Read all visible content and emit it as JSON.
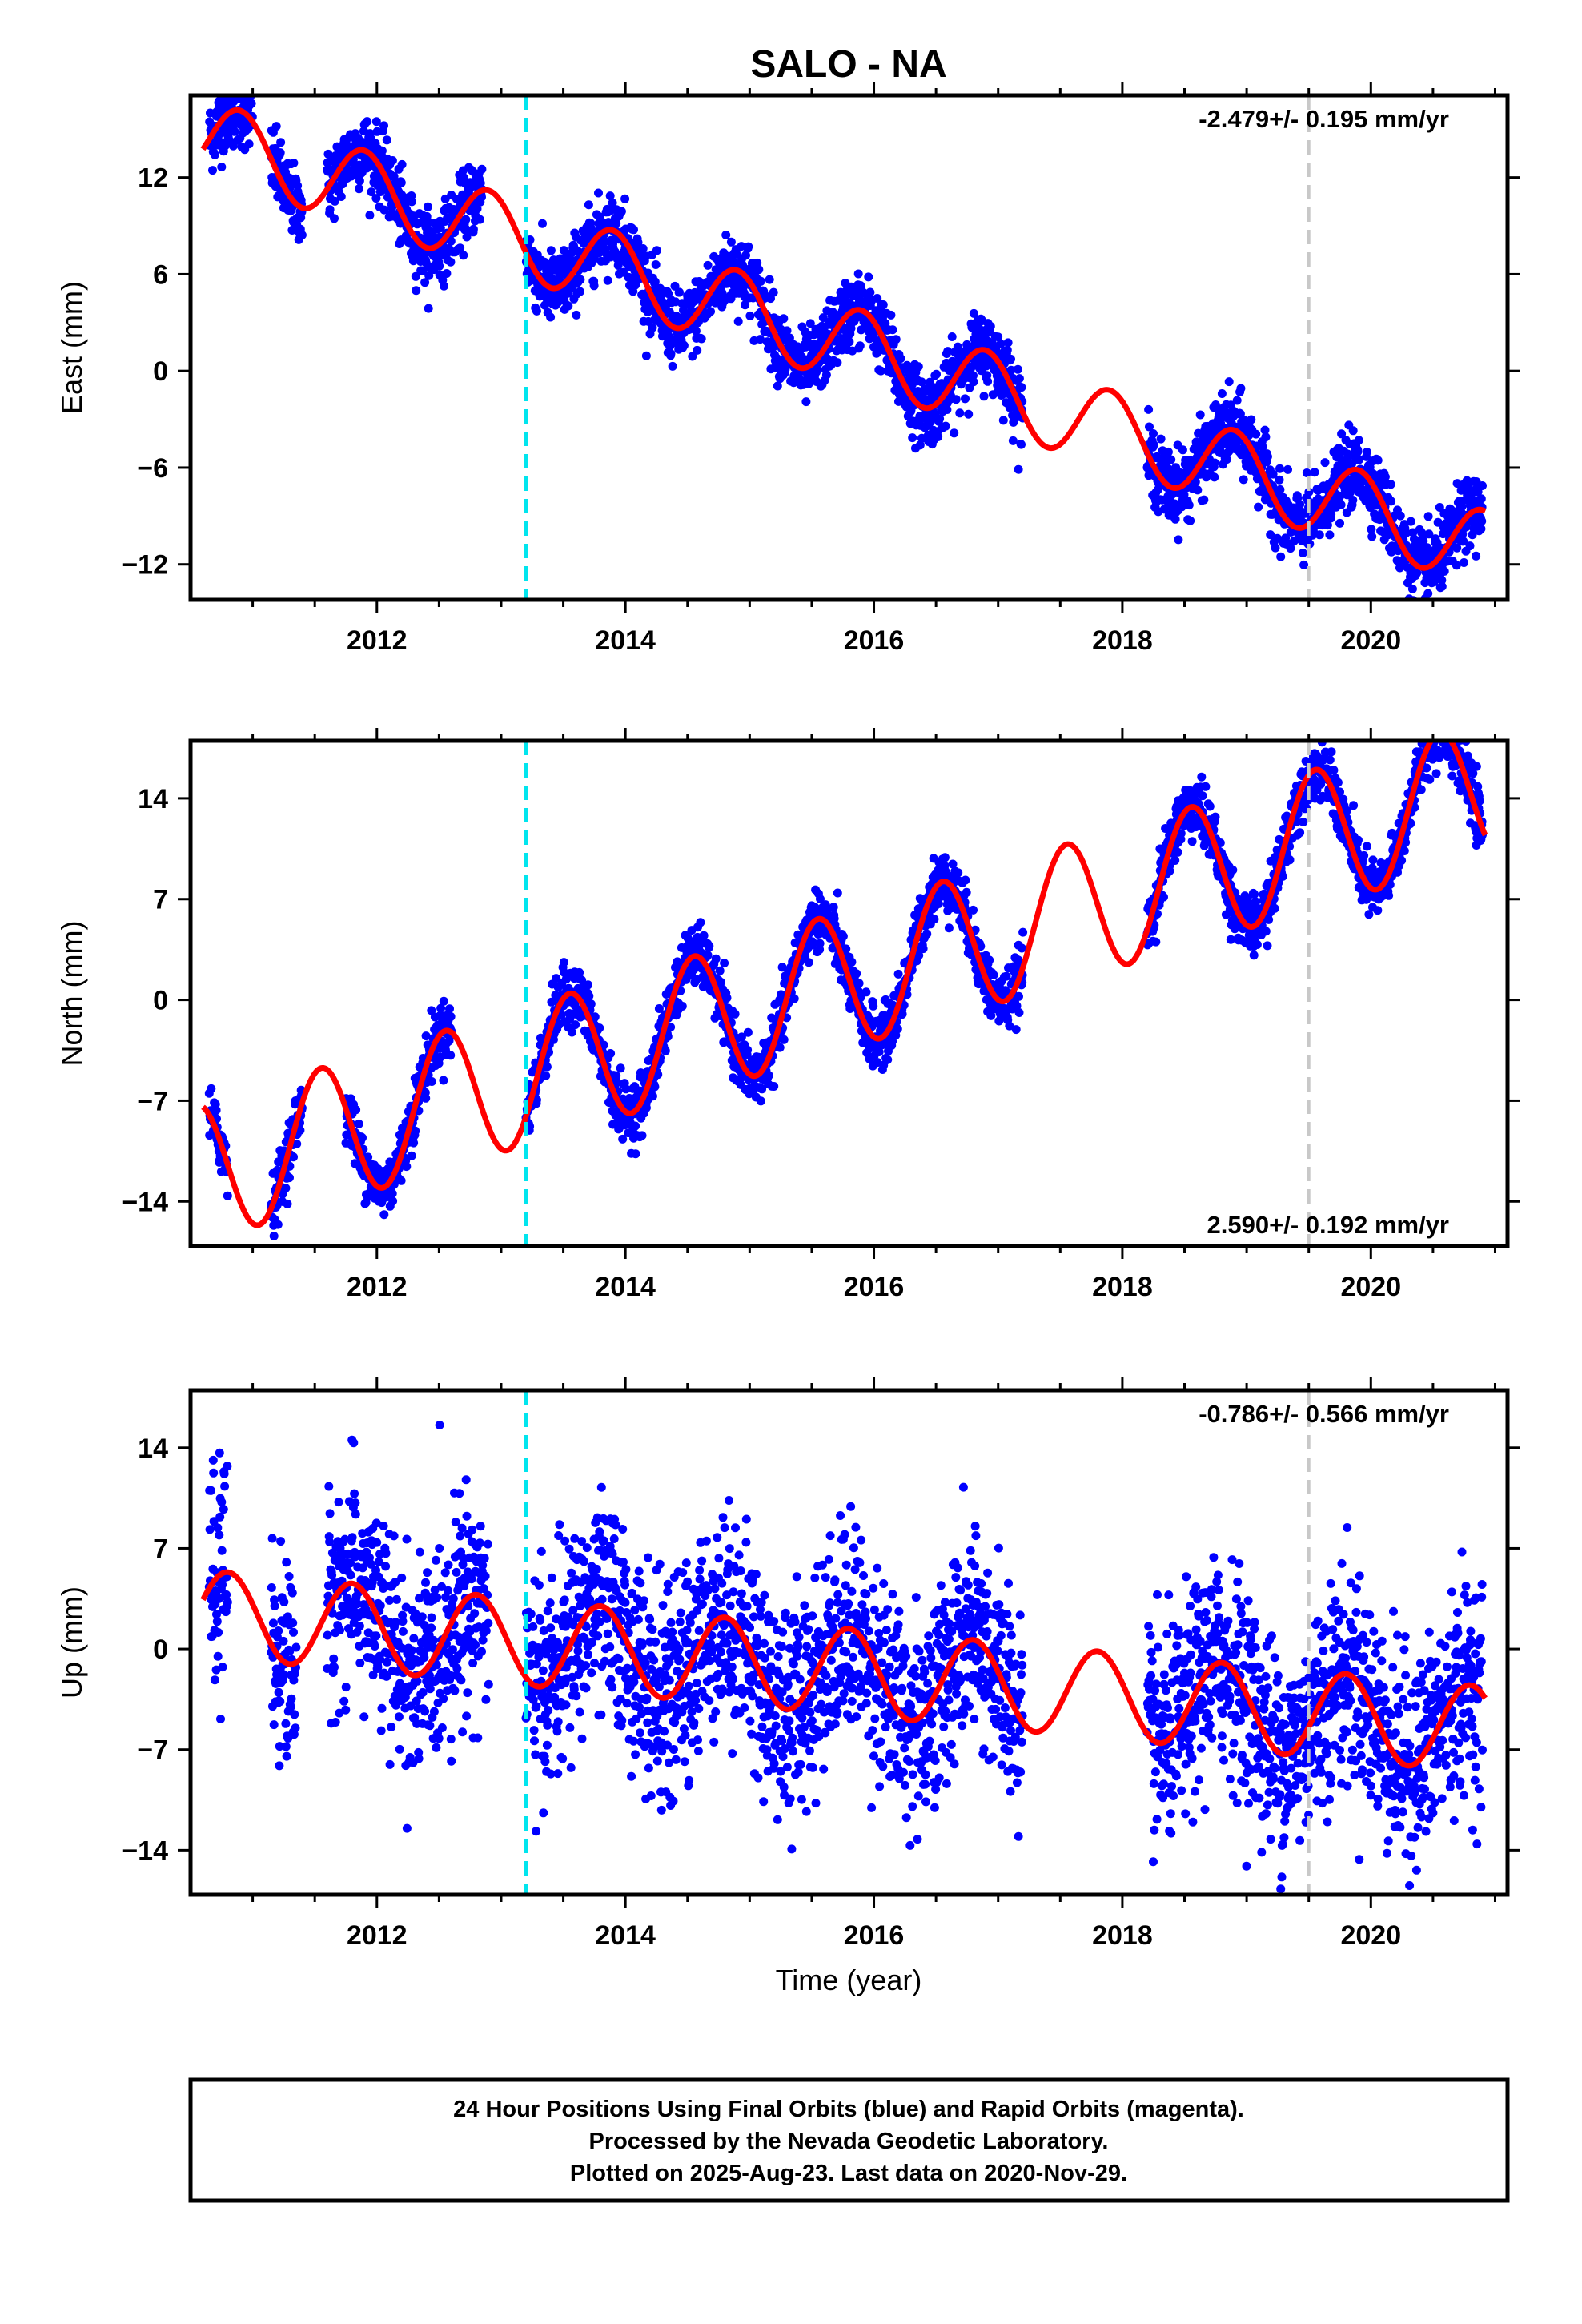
{
  "chart_data": [
    {
      "type": "scatter",
      "id": "east",
      "title": "SALO - NA",
      "ylabel": "East (mm)",
      "xlabel": "",
      "xlim": [
        2010.5,
        2021.1
      ],
      "ylim": [
        -14.2,
        17.1
      ],
      "yticks": [
        -12,
        -6,
        0,
        6,
        12
      ],
      "xticks": [
        2012,
        2014,
        2016,
        2018,
        2020
      ],
      "rate_label": "-2.479+/- 0.195 mm/yr",
      "rate_position": "top-right",
      "vlines": [
        {
          "x": 2013.2,
          "color": "#00e5ee",
          "style": "dashed"
        },
        {
          "x": 2019.5,
          "color": "#c8c8c8",
          "style": "dashed"
        }
      ],
      "data_segments": [
        [
          2010.65,
          2011.0
        ],
        [
          2011.15,
          2011.4
        ],
        [
          2011.6,
          2012.85
        ],
        [
          2013.2,
          2017.2
        ],
        [
          2018.2,
          2020.9
        ]
      ],
      "model": {
        "color": "#ff0000",
        "rate_per_year": -2.479,
        "value_at_2010.6": 14.5,
        "annual_amplitude": 2.4,
        "peak_phase": 0.9
      },
      "series": [
        {
          "marker_color": "#0000ff",
          "scatter_sd": 1.1
        }
      ]
    },
    {
      "type": "scatter",
      "id": "north",
      "ylabel": "North (mm)",
      "xlabel": "",
      "xlim": [
        2010.5,
        2021.1
      ],
      "ylim": [
        -17.1,
        18.0
      ],
      "yticks": [
        -14,
        -7,
        0,
        7,
        14
      ],
      "xticks": [
        2012,
        2014,
        2016,
        2018,
        2020
      ],
      "rate_label": "2.590+/- 0.192 mm/yr",
      "rate_position": "bottom-right",
      "vlines": [
        {
          "x": 2013.2,
          "color": "#00e5ee",
          "style": "dashed"
        },
        {
          "x": 2019.5,
          "color": "#c8c8c8",
          "style": "dashed"
        }
      ],
      "data_segments": [
        [
          2010.65,
          2010.8
        ],
        [
          2011.15,
          2011.4
        ],
        [
          2011.75,
          2012.6
        ],
        [
          2013.2,
          2017.2
        ],
        [
          2018.2,
          2020.9
        ]
      ],
      "model": {
        "color": "#ff0000",
        "rate_per_year": 2.59,
        "value_at_2010.6": -12.0,
        "annual_amplitude": 4.8,
        "peak_phase": 0.55
      },
      "series": [
        {
          "marker_color": "#0000ff",
          "scatter_sd": 1.0
        }
      ]
    },
    {
      "type": "scatter",
      "id": "up",
      "ylabel": "Up (mm)",
      "xlabel": "Time (year)",
      "xlim": [
        2010.5,
        2021.1
      ],
      "ylim": [
        -17.1,
        18.0
      ],
      "yticks": [
        -14,
        -7,
        0,
        7,
        14
      ],
      "xticks": [
        2012,
        2014,
        2016,
        2018,
        2020
      ],
      "rate_label": "-0.786+/- 0.566 mm/yr",
      "rate_position": "top-right",
      "vlines": [
        {
          "x": 2013.2,
          "color": "#00e5ee",
          "style": "dashed"
        },
        {
          "x": 2019.5,
          "color": "#c8c8c8",
          "style": "dashed"
        }
      ],
      "data_segments": [
        [
          2010.65,
          2010.8
        ],
        [
          2011.15,
          2011.35
        ],
        [
          2011.6,
          2012.9
        ],
        [
          2013.2,
          2017.2
        ],
        [
          2018.2,
          2020.9
        ]
      ],
      "model": {
        "color": "#ff0000",
        "rate_per_year": -0.786,
        "value_at_2010.6": 2.5,
        "annual_amplitude": 3.0,
        "peak_phase": 0.8
      },
      "series": [
        {
          "marker_color": "#0000ff",
          "scatter_sd": 3.6
        }
      ]
    }
  ],
  "caption": {
    "line1": "24 Hour Positions Using Final Orbits (blue) and Rapid Orbits (magenta).",
    "line2": "Processed by the Nevada Geodetic Laboratory.",
    "line3": "Plotted on 2025-Aug-23. Last data on 2020-Nov-29."
  }
}
